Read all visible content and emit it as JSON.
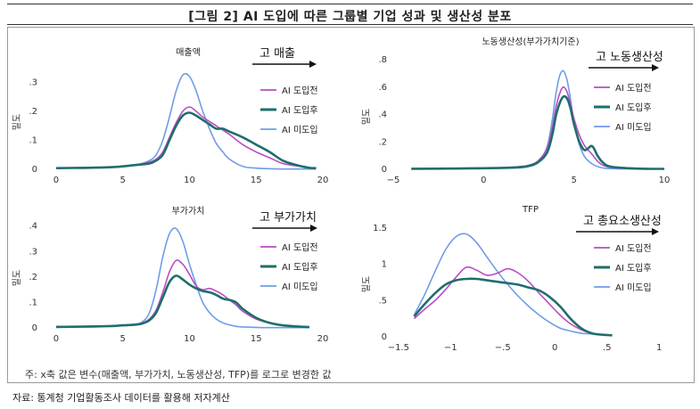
{
  "figure": {
    "title": "[그림 2] AI 도입에 따른 그룹별 기업 성과 및 생산성 분포",
    "note": "주: x축 값은 변수(매출액, 부가가치, 노동생산성, TFP)를 로그로 변경한 값",
    "source": "자료: 통계청 기업활동조사 데이터를 활용해 저자계산"
  },
  "colors": {
    "ai_before": "#b84dc4",
    "ai_after": "#1f6e6b",
    "no_ai": "#6e9de8"
  },
  "chart_data": [
    {
      "type": "line",
      "title": "매출액",
      "arrow_label": "고 매출",
      "ylabel": "밀도",
      "xlim": [
        -1,
        20
      ],
      "ylim": [
        0,
        0.35
      ],
      "xticks": [
        "0",
        "5",
        "10",
        "15",
        "20"
      ],
      "yticks": [
        "0",
        ".1",
        ".2",
        ".3"
      ],
      "x": [
        0,
        2,
        4,
        5,
        6,
        7,
        7.5,
        8,
        8.5,
        9,
        9.5,
        10,
        10.5,
        11,
        11.5,
        12,
        12.5,
        13,
        14,
        15,
        16,
        17,
        18,
        19,
        19.5
      ],
      "series": [
        {
          "name": "AI 도입전",
          "key": "ai_before",
          "values": [
            0.005,
            0.006,
            0.008,
            0.01,
            0.015,
            0.025,
            0.035,
            0.06,
            0.11,
            0.16,
            0.2,
            0.215,
            0.2,
            0.18,
            0.165,
            0.15,
            0.135,
            0.12,
            0.085,
            0.06,
            0.04,
            0.02,
            0.012,
            0.006,
            0.005
          ]
        },
        {
          "name": "AI 도입후",
          "key": "ai_after",
          "values": [
            0.004,
            0.005,
            0.007,
            0.01,
            0.015,
            0.02,
            0.03,
            0.05,
            0.1,
            0.15,
            0.185,
            0.195,
            0.185,
            0.17,
            0.155,
            0.14,
            0.14,
            0.13,
            0.11,
            0.085,
            0.06,
            0.03,
            0.015,
            0.005,
            0.004
          ]
        },
        {
          "name": "AI 미도입",
          "key": "no_ai",
          "values": [
            0.005,
            0.006,
            0.007,
            0.01,
            0.015,
            0.03,
            0.05,
            0.1,
            0.18,
            0.27,
            0.325,
            0.32,
            0.27,
            0.2,
            0.14,
            0.09,
            0.06,
            0.035,
            0.01,
            0.004,
            0.002,
            0.001,
            0.001,
            0.001,
            0.001
          ]
        }
      ]
    },
    {
      "type": "line",
      "title": "노동생산성(부가가치기준)",
      "arrow_label": "고 노동생산성",
      "ylabel": "밀도",
      "xlim": [
        -5,
        10
      ],
      "ylim": [
        0,
        0.82
      ],
      "xticks": [
        "−5",
        "0",
        "5",
        "10"
      ],
      "yticks": [
        "0",
        ".2",
        ".4",
        ".6",
        ".8"
      ],
      "x": [
        -4,
        -2,
        0,
        1,
        2,
        2.5,
        3,
        3.5,
        3.8,
        4,
        4.2,
        4.4,
        4.6,
        4.8,
        5,
        5.3,
        5.6,
        6,
        6.3,
        6.6,
        7,
        8,
        9,
        10
      ],
      "series": [
        {
          "name": "AI 도입전",
          "key": "ai_before",
          "values": [
            0.005,
            0.007,
            0.01,
            0.013,
            0.02,
            0.03,
            0.06,
            0.15,
            0.3,
            0.45,
            0.55,
            0.6,
            0.57,
            0.48,
            0.37,
            0.25,
            0.17,
            0.11,
            0.06,
            0.03,
            0.015,
            0.006,
            0.003,
            0.002
          ]
        },
        {
          "name": "AI 도입후",
          "key": "ai_after",
          "values": [
            0.004,
            0.005,
            0.008,
            0.01,
            0.015,
            0.025,
            0.05,
            0.12,
            0.25,
            0.39,
            0.48,
            0.53,
            0.52,
            0.45,
            0.33,
            0.2,
            0.14,
            0.17,
            0.1,
            0.05,
            0.02,
            0.008,
            0.004,
            0.003
          ]
        },
        {
          "name": "AI 미도입",
          "key": "no_ai",
          "values": [
            0.003,
            0.004,
            0.006,
            0.008,
            0.012,
            0.02,
            0.05,
            0.16,
            0.36,
            0.55,
            0.68,
            0.72,
            0.66,
            0.52,
            0.34,
            0.18,
            0.09,
            0.04,
            0.02,
            0.01,
            0.005,
            0.003,
            0.002,
            0.002
          ]
        }
      ]
    },
    {
      "type": "line",
      "title": "부가가치",
      "arrow_label": "고 부가가치",
      "ylabel": "밀도",
      "xlim": [
        -1,
        20
      ],
      "ylim": [
        0,
        0.42
      ],
      "xticks": [
        "0",
        "5",
        "10",
        "15",
        "20"
      ],
      "yticks": [
        "0",
        ".1",
        ".2",
        ".3",
        ".4"
      ],
      "x": [
        0,
        2,
        4,
        5,
        6,
        6.5,
        7,
        7.5,
        8,
        8.5,
        9,
        9.5,
        10,
        10.5,
        11,
        11.5,
        12,
        12.5,
        13,
        13.5,
        14,
        15,
        16,
        17,
        18,
        19
      ],
      "series": [
        {
          "name": "AI 도입전",
          "key": "ai_before",
          "values": [
            0.005,
            0.006,
            0.008,
            0.01,
            0.015,
            0.02,
            0.035,
            0.07,
            0.14,
            0.22,
            0.265,
            0.25,
            0.21,
            0.165,
            0.15,
            0.155,
            0.145,
            0.13,
            0.11,
            0.09,
            0.065,
            0.035,
            0.02,
            0.01,
            0.006,
            0.004
          ]
        },
        {
          "name": "AI 도입후",
          "key": "ai_after",
          "values": [
            0.004,
            0.005,
            0.007,
            0.01,
            0.013,
            0.018,
            0.03,
            0.06,
            0.12,
            0.18,
            0.205,
            0.19,
            0.17,
            0.155,
            0.145,
            0.14,
            0.13,
            0.115,
            0.11,
            0.1,
            0.075,
            0.04,
            0.02,
            0.01,
            0.006,
            0.003
          ]
        },
        {
          "name": "AI 미도입",
          "key": "no_ai",
          "values": [
            0.005,
            0.006,
            0.008,
            0.01,
            0.015,
            0.025,
            0.06,
            0.15,
            0.28,
            0.37,
            0.39,
            0.34,
            0.25,
            0.17,
            0.1,
            0.06,
            0.035,
            0.02,
            0.012,
            0.006,
            0.004,
            0.002,
            0.001,
            0.001,
            0.001,
            0.001
          ]
        }
      ]
    },
    {
      "type": "line",
      "title": "TFP",
      "arrow_label": "고 총요소생산성",
      "ylabel": "밀도",
      "xlim": [
        -1.55,
        1.05
      ],
      "ylim": [
        0,
        1.55
      ],
      "xticks": [
        "−1.5",
        "−1",
        "−.5",
        "0",
        ".5",
        "1"
      ],
      "yticks": [
        "0",
        ".5",
        "1",
        "1.5"
      ],
      "x": [
        -1.35,
        -1.25,
        -1.15,
        -1.05,
        -0.95,
        -0.85,
        -0.75,
        -0.65,
        -0.55,
        -0.45,
        -0.35,
        -0.25,
        -0.15,
        -0.05,
        0.05,
        0.15,
        0.25,
        0.35,
        0.45,
        0.55
      ],
      "series": [
        {
          "name": "AI 도입전",
          "key": "ai_before",
          "values": [
            0.25,
            0.38,
            0.5,
            0.65,
            0.82,
            0.96,
            0.92,
            0.85,
            0.88,
            0.94,
            0.88,
            0.76,
            0.6,
            0.45,
            0.3,
            0.18,
            0.1,
            0.05,
            0.03,
            0.02
          ]
        },
        {
          "name": "AI 도입후",
          "key": "ai_after",
          "values": [
            0.28,
            0.45,
            0.6,
            0.72,
            0.78,
            0.8,
            0.8,
            0.78,
            0.76,
            0.74,
            0.72,
            0.68,
            0.64,
            0.55,
            0.42,
            0.25,
            0.12,
            0.05,
            0.03,
            0.02
          ]
        },
        {
          "name": "AI 미도입",
          "key": "no_ai",
          "values": [
            0.3,
            0.58,
            0.9,
            1.2,
            1.38,
            1.42,
            1.3,
            1.1,
            0.9,
            0.72,
            0.56,
            0.42,
            0.3,
            0.2,
            0.12,
            0.08,
            0.05,
            0.04,
            0.03,
            0.03
          ]
        }
      ]
    }
  ]
}
